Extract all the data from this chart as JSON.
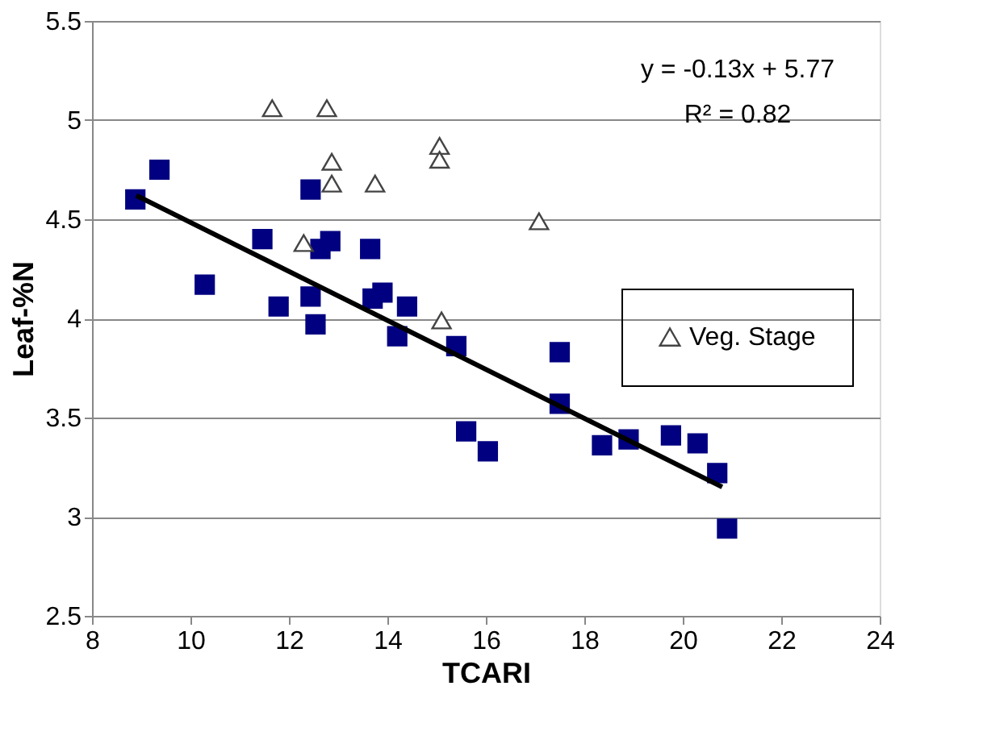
{
  "chart_data": {
    "type": "scatter",
    "xlabel": "TCARI",
    "ylabel": "Leaf-%N",
    "xlim": [
      8,
      24
    ],
    "xticks": [
      8,
      10,
      12,
      14,
      16,
      18,
      20,
      22,
      24
    ],
    "ylim": [
      2.5,
      5.5
    ],
    "yticks": [
      2.5,
      {
        "value": 3,
        "label": "3"
      },
      3.5,
      {
        "value": 4,
        "label": "4"
      },
      4.5,
      {
        "value": 5,
        "label": "5"
      },
      5.5
    ],
    "grid": "y",
    "legend": "right",
    "annotations": [
      "y = -0.13x + 5.77",
      "R² = 0.82"
    ],
    "series": [
      {
        "marker": "square",
        "color": "#000080",
        "x": [
          8.88,
          9.37,
          10.29,
          11.46,
          11.79,
          12.44,
          12.44,
          12.54,
          12.64,
          12.84,
          13.65,
          13.7,
          13.9,
          14.4,
          14.2,
          15.4,
          15.6,
          16.04,
          17.5,
          17.5,
          18.36,
          18.9,
          19.76,
          20.3,
          20.7,
          20.9
        ],
        "values": [
          4.6,
          4.75,
          4.17,
          4.4,
          4.06,
          4.65,
          4.11,
          3.97,
          4.35,
          4.39,
          4.35,
          4.1,
          4.13,
          4.06,
          3.91,
          3.86,
          3.43,
          3.33,
          3.83,
          3.57,
          3.36,
          3.39,
          3.41,
          3.37,
          3.22,
          2.94
        ]
      },
      {
        "marker": "triangle",
        "name": "Veg. Stage",
        "color": "#ffffff",
        "x": [
          11.66,
          12.77,
          12.87,
          12.87,
          12.3,
          13.75,
          15.06,
          15.06,
          15.1,
          17.08
        ],
        "values": [
          5.06,
          5.06,
          4.79,
          4.68,
          4.38,
          4.68,
          4.87,
          4.8,
          3.99,
          4.49
        ]
      },
      {
        "type": "line",
        "color": "#000000",
        "x": [
          8.9,
          20.8
        ],
        "values": [
          4.62,
          3.15
        ]
      }
    ]
  }
}
